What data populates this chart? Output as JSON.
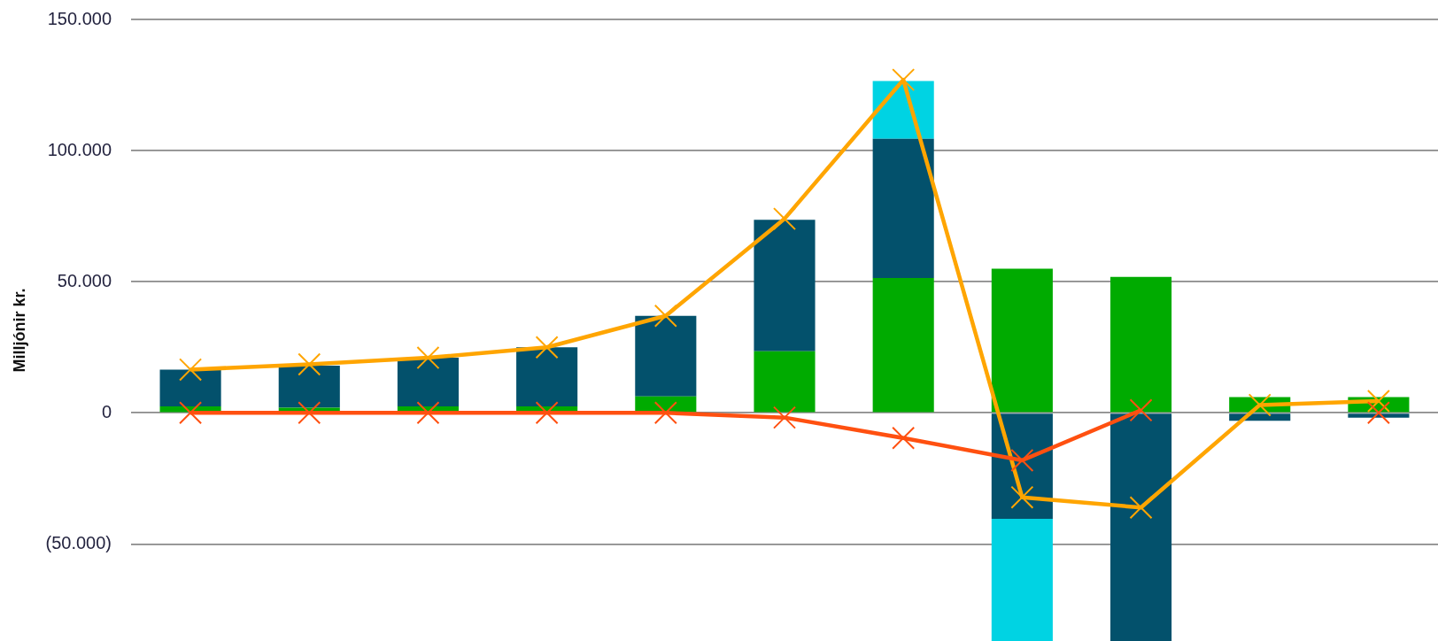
{
  "chart_data": {
    "type": "bar",
    "stacked": true,
    "ylabel": "Milljónir kr.",
    "tick_labels": "y",
    "grid": "y",
    "categories": [
      null,
      null,
      null,
      null,
      null,
      null,
      null,
      null,
      null,
      null,
      null
    ],
    "series": [
      {
        "color": "#00ab00",
        "values": [
          2500,
          2000,
          2500,
          2500,
          6300,
          23500,
          51400,
          55000,
          51800,
          6000,
          6000
        ]
      },
      {
        "color": "#03516c",
        "values": [
          14000,
          16000,
          18500,
          22500,
          30700,
          50100,
          53100,
          -40400,
          -87000,
          -3000,
          -1800
        ]
      },
      {
        "color": "#00d3e3",
        "values": [
          null,
          null,
          null,
          null,
          null,
          null,
          22000,
          -46600,
          null,
          null,
          null
        ]
      },
      {
        "type": "line",
        "color": "#ffa500",
        "marker": "cross",
        "values": [
          16500,
          18500,
          21000,
          25000,
          37000,
          74000,
          127000,
          -32200,
          -36100,
          3000,
          4500
        ]
      },
      {
        "type": "line",
        "color": "#ff5010",
        "marker": "cross",
        "values": [
          0,
          0,
          0,
          0,
          0,
          -1800,
          -9600,
          -18100,
          1000,
          null,
          0
        ]
      }
    ],
    "ylim": [
      -87000,
      150000
    ],
    "yticks": [
      {
        "value": -50000,
        "label": "(50.000)"
      },
      0,
      {
        "value": 50000,
        "label": "50.000"
      },
      {
        "value": 100000,
        "label": "100.000"
      },
      {
        "value": 150000,
        "label": "150.000"
      }
    ]
  }
}
